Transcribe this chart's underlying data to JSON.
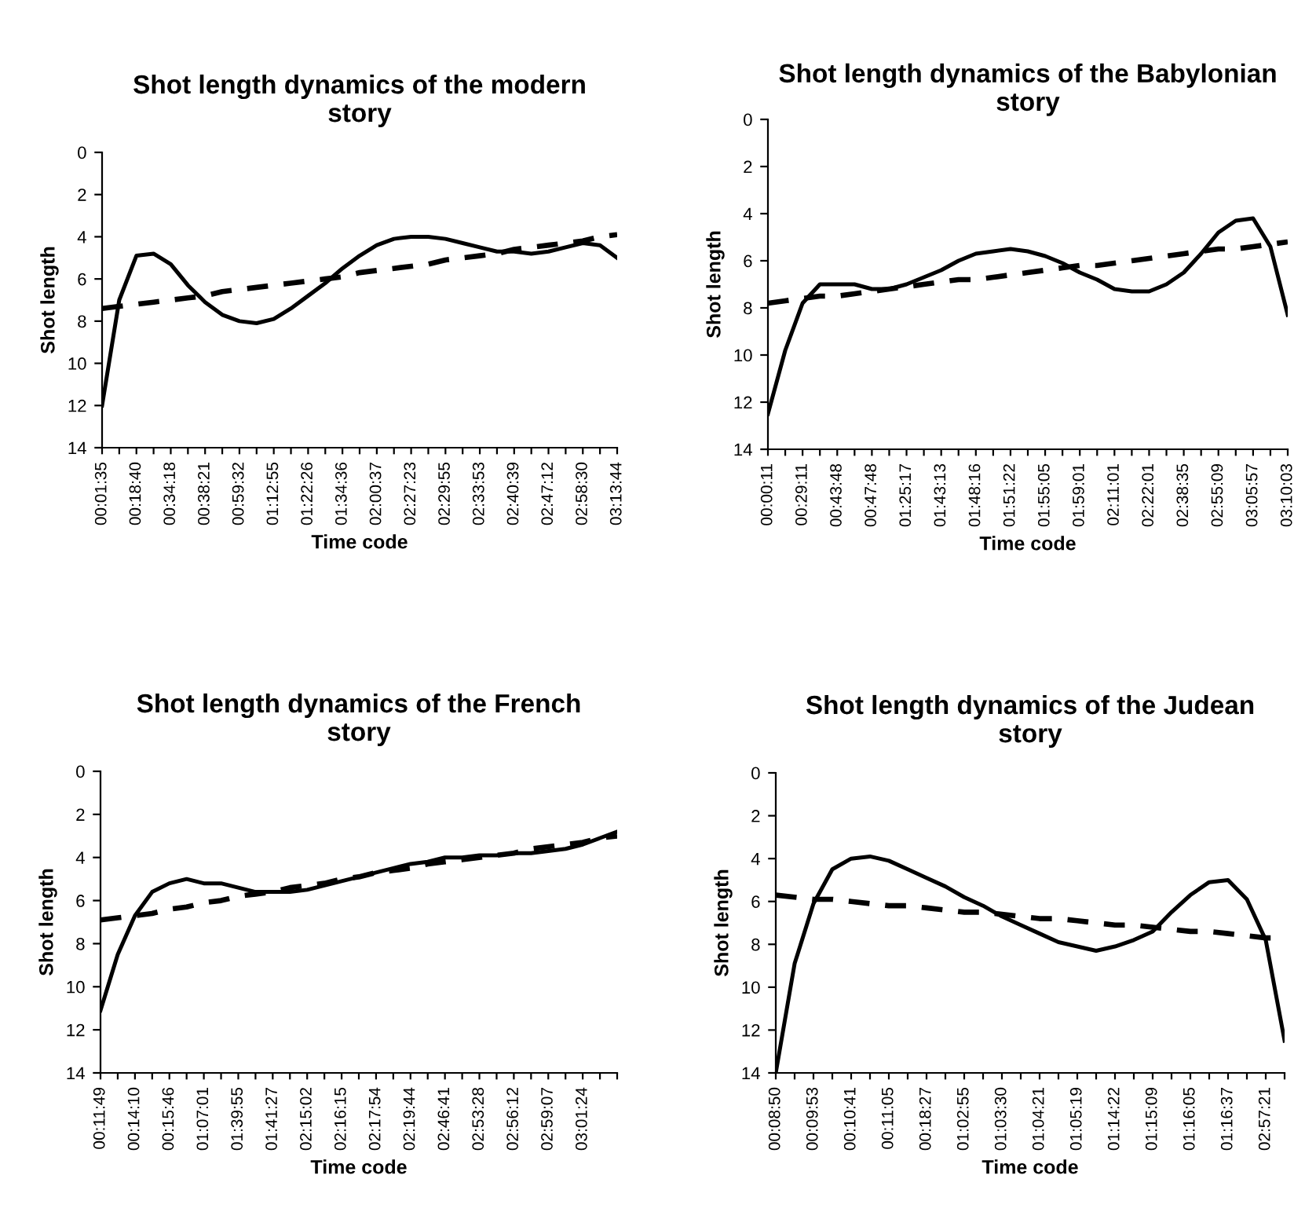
{
  "chart_data": [
    {
      "type": "line",
      "title": "Shot length dynamics of the modern story",
      "xlabel": "Time code",
      "ylabel": "Shot length",
      "ylim": [
        14,
        0
      ],
      "yticks": [
        0,
        2,
        4,
        6,
        8,
        10,
        12,
        14
      ],
      "grid": false,
      "legend": false,
      "marker": "none",
      "categories": [
        "00:01:35",
        null,
        "00:18:40",
        null,
        "00:34:18",
        null,
        "00:38:21",
        null,
        "00:59:32",
        null,
        "01:12:55",
        null,
        "01:22:26",
        null,
        "01:34:36",
        null,
        "02:00:37",
        null,
        "02:27:23",
        null,
        "02:29:55",
        null,
        "02:33:53",
        null,
        "02:40:39",
        null,
        "02:47:12",
        null,
        "02:58:30",
        null,
        "03:13:44"
      ],
      "series": [
        {
          "color": "#000000",
          "line_style": "solid",
          "values": [
            12.0,
            7.0,
            4.9,
            4.8,
            5.3,
            6.3,
            7.1,
            7.7,
            8.0,
            8.1,
            7.9,
            7.4,
            6.8,
            6.2,
            5.5,
            4.9,
            4.4,
            4.1,
            4.0,
            4.0,
            4.1,
            4.3,
            4.5,
            4.7,
            4.7,
            4.8,
            4.7,
            4.5,
            4.3,
            4.4,
            5.0
          ]
        },
        {
          "color": "#000000",
          "line_style": "dashed",
          "values": [
            7.4,
            7.3,
            7.2,
            7.1,
            7.0,
            6.9,
            6.8,
            6.6,
            6.5,
            6.4,
            6.3,
            6.2,
            6.1,
            6.0,
            5.9,
            5.7,
            5.6,
            5.5,
            5.4,
            5.3,
            5.1,
            5.0,
            4.9,
            4.8,
            4.6,
            4.5,
            4.4,
            4.3,
            4.2,
            4.0,
            3.9
          ]
        }
      ]
    },
    {
      "type": "line",
      "title": "Shot length dynamics of the Babylonian story",
      "xlabel": "Time code",
      "ylabel": "Shot length",
      "ylim": [
        14,
        0
      ],
      "yticks": [
        0,
        2,
        4,
        6,
        8,
        10,
        12,
        14
      ],
      "grid": false,
      "legend": false,
      "marker": "none",
      "categories": [
        "00:00:11",
        null,
        "00:29:11",
        null,
        "00:43:48",
        null,
        "00:47:48",
        null,
        "01:25:17",
        null,
        "01:43:13",
        null,
        "01:48:16",
        null,
        "01:51:22",
        null,
        "01:55:05",
        null,
        "01:59:01",
        null,
        "02:11:01",
        null,
        "02:22:01",
        null,
        "02:38:35",
        null,
        "02:55:09",
        null,
        "03:05:57",
        null,
        "03:10:03"
      ],
      "series": [
        {
          "color": "#000000",
          "line_style": "solid",
          "values": [
            12.5,
            9.8,
            7.8,
            7.0,
            7.0,
            7.0,
            7.2,
            7.2,
            7.0,
            6.7,
            6.4,
            6.0,
            5.7,
            5.6,
            5.5,
            5.6,
            5.8,
            6.1,
            6.5,
            6.8,
            7.2,
            7.3,
            7.3,
            7.0,
            6.5,
            5.7,
            4.8,
            4.3,
            4.2,
            5.4,
            8.3
          ]
        },
        {
          "color": "#000000",
          "line_style": "dashed",
          "values": [
            7.8,
            7.7,
            7.6,
            7.5,
            7.5,
            7.4,
            7.3,
            7.2,
            7.1,
            7.0,
            6.9,
            6.8,
            6.8,
            6.7,
            6.6,
            6.5,
            6.4,
            6.3,
            6.2,
            6.2,
            6.1,
            6.0,
            5.9,
            5.8,
            5.7,
            5.6,
            5.5,
            5.5,
            5.4,
            5.3,
            5.2
          ]
        }
      ]
    },
    {
      "type": "line",
      "title": "Shot length dynamics of the French story",
      "xlabel": "Time code",
      "ylabel": "Shot length",
      "ylim": [
        14,
        0
      ],
      "yticks": [
        0,
        2,
        4,
        6,
        8,
        10,
        12,
        14
      ],
      "grid": false,
      "legend": false,
      "marker": "none",
      "categories": [
        "00:11:49",
        null,
        "00:14:10",
        null,
        "00:15:46",
        null,
        "01:07:01",
        null,
        "01:39:55",
        null,
        "01:41:27",
        null,
        "02:15:02",
        null,
        "02:16:15",
        null,
        "02:17:54",
        null,
        "02:19:44",
        null,
        "02:46:41",
        null,
        "02:53:28",
        null,
        "02:56:12",
        null,
        "02:59:07",
        null,
        "03:01:24",
        null,
        null
      ],
      "series": [
        {
          "color": "#000000",
          "line_style": "solid",
          "values": [
            11.1,
            8.5,
            6.7,
            5.6,
            5.2,
            5.0,
            5.2,
            5.2,
            5.4,
            5.6,
            5.6,
            5.6,
            5.5,
            5.3,
            5.1,
            4.9,
            4.7,
            4.5,
            4.3,
            4.2,
            4.0,
            4.0,
            3.9,
            3.9,
            3.8,
            3.8,
            3.7,
            3.6,
            3.4,
            3.1,
            2.8
          ]
        },
        {
          "color": "#000000",
          "line_style": "dashed",
          "values": [
            6.9,
            6.8,
            6.7,
            6.6,
            6.4,
            6.3,
            6.1,
            6.0,
            5.8,
            5.7,
            5.6,
            5.4,
            5.3,
            5.2,
            5.0,
            4.9,
            4.7,
            4.6,
            4.5,
            4.3,
            4.2,
            4.1,
            4.0,
            3.9,
            3.8,
            3.6,
            3.5,
            3.4,
            3.3,
            3.1,
            3.0
          ]
        }
      ]
    },
    {
      "type": "line",
      "title": "Shot length dynamics of the Judean story",
      "xlabel": "Time code",
      "ylabel": "Shot length",
      "ylim": [
        14,
        0
      ],
      "yticks": [
        0,
        2,
        4,
        6,
        8,
        10,
        12,
        14
      ],
      "grid": false,
      "legend": false,
      "marker": "none",
      "categories": [
        "00:08:50",
        null,
        "00:09:53",
        null,
        "00:10:41",
        null,
        "00:11:05",
        null,
        "00:18:27",
        null,
        "01:02:55",
        null,
        "01:03:30",
        null,
        "01:04:21",
        null,
        "01:05:19",
        null,
        "01:14:22",
        null,
        "01:15:09",
        null,
        "01:16:05",
        null,
        "01:16:37",
        null,
        "02:57:21",
        null
      ],
      "series": [
        {
          "color": "#000000",
          "line_style": "solid",
          "values": [
            14.0,
            8.9,
            6.1,
            4.5,
            4.0,
            3.9,
            4.1,
            4.5,
            4.9,
            5.3,
            5.8,
            6.2,
            6.7,
            7.1,
            7.5,
            7.9,
            8.1,
            8.3,
            8.1,
            7.8,
            7.4,
            6.5,
            5.7,
            5.1,
            5.0,
            5.9,
            7.8,
            12.5
          ]
        },
        {
          "color": "#000000",
          "line_style": "dashed",
          "values": [
            5.7,
            5.8,
            5.9,
            5.9,
            6.0,
            6.1,
            6.2,
            6.2,
            6.3,
            6.4,
            6.5,
            6.5,
            6.6,
            6.7,
            6.8,
            6.8,
            6.9,
            7.0,
            7.1,
            7.1,
            7.2,
            7.3,
            7.4,
            7.4,
            7.5,
            7.6,
            7.7,
            7.7
          ]
        }
      ]
    }
  ]
}
